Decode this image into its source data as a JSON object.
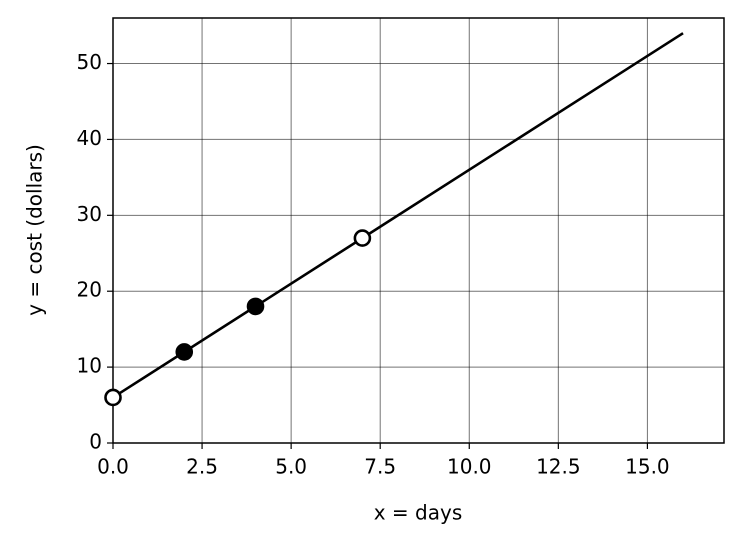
{
  "chart_data": {
    "type": "line",
    "xlabel": "x = days",
    "ylabel": "y = cost (dollars)",
    "xlim": [
      0,
      17.15
    ],
    "ylim": [
      0,
      56
    ],
    "xticks": [
      {
        "value": 0,
        "label": "0.0"
      },
      2.5,
      {
        "value": 5,
        "label": "5.0"
      },
      7.5,
      {
        "value": 10,
        "label": "10.0"
      },
      12.5,
      {
        "value": 15,
        "label": "15.0"
      }
    ],
    "yticks": [
      0,
      10,
      20,
      30,
      40,
      50
    ],
    "grid": true,
    "series": [
      {
        "x": [
          0,
          16
        ],
        "values": [
          6,
          54
        ],
        "color": "#000000",
        "marker": "none"
      },
      {
        "x": [
          2,
          4
        ],
        "values": [
          12,
          18
        ],
        "color": "#000000",
        "marker": "filled"
      },
      {
        "x": [
          0,
          7
        ],
        "values": [
          6,
          27
        ],
        "color": "#000000",
        "marker": "open"
      }
    ]
  }
}
